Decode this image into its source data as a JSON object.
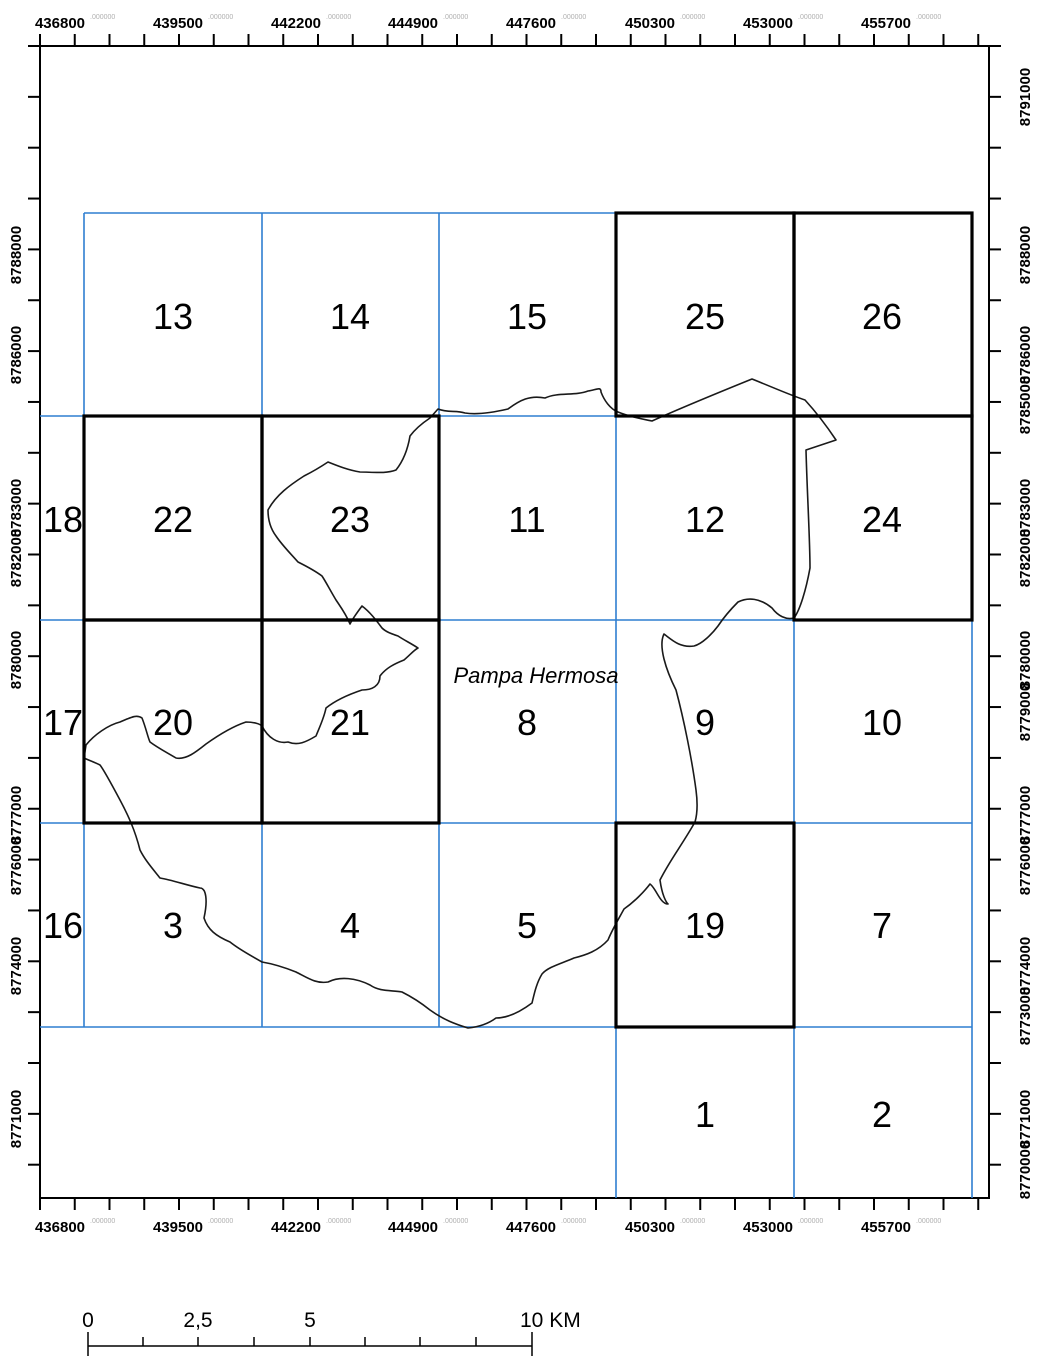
{
  "map": {
    "place_label": "Pampa Hermosa",
    "x_ticks": [
      "436800",
      "439500",
      "442200",
      "444900",
      "447600",
      "450300",
      "453000",
      "455700"
    ],
    "y_ticks": [
      "8791000",
      "8788000",
      "8786000",
      "8785000",
      "8783000",
      "8782000",
      "8780000",
      "8779000",
      "8777000",
      "8776000",
      "8774000",
      "8773000",
      "8771000",
      "8770000"
    ],
    "tick_suffix": ".000000",
    "colors": {
      "grid_line": "#2f7fd0",
      "highlight_border": "#000000",
      "frame": "#000000"
    },
    "cells": [
      {
        "label": "13",
        "highlight": false
      },
      {
        "label": "14",
        "highlight": false
      },
      {
        "label": "15",
        "highlight": false
      },
      {
        "label": "25",
        "highlight": true
      },
      {
        "label": "26",
        "highlight": true
      },
      {
        "label": "18",
        "highlight": false
      },
      {
        "label": "22",
        "highlight": true
      },
      {
        "label": "23",
        "highlight": true
      },
      {
        "label": "11",
        "highlight": false
      },
      {
        "label": "12",
        "highlight": false
      },
      {
        "label": "24",
        "highlight": true
      },
      {
        "label": "17",
        "highlight": false
      },
      {
        "label": "20",
        "highlight": true
      },
      {
        "label": "21",
        "highlight": true
      },
      {
        "label": "8",
        "highlight": false
      },
      {
        "label": "9",
        "highlight": false
      },
      {
        "label": "10",
        "highlight": false
      },
      {
        "label": "16",
        "highlight": false
      },
      {
        "label": "3",
        "highlight": false
      },
      {
        "label": "4",
        "highlight": false
      },
      {
        "label": "5",
        "highlight": false
      },
      {
        "label": "19",
        "highlight": true
      },
      {
        "label": "7",
        "highlight": false
      },
      {
        "label": "1",
        "highlight": false
      },
      {
        "label": "2",
        "highlight": false
      }
    ]
  },
  "scale_bar": {
    "labels": [
      "0",
      "2,5",
      "5",
      "10 KM"
    ]
  }
}
